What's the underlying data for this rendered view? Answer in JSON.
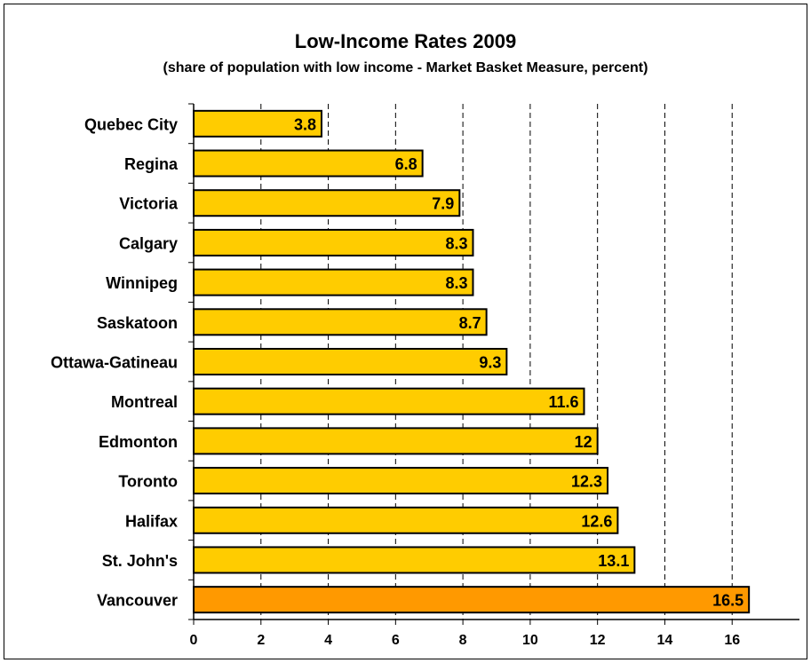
{
  "chart_data": {
    "type": "bar",
    "orientation": "horizontal",
    "title": "Low-Income Rates 2009",
    "subtitle": "(share of population with low income - Market Basket Measure, percent)",
    "xlabel": "",
    "ylabel": "",
    "categories": [
      "Quebec City",
      "Regina",
      "Victoria",
      "Calgary",
      "Winnipeg",
      "Saskatoon",
      "Ottawa-Gatineau",
      "Montreal",
      "Edmonton",
      "Toronto",
      "Halifax",
      "St. John's",
      "Vancouver"
    ],
    "values": [
      3.8,
      6.8,
      7.9,
      8.3,
      8.3,
      8.7,
      9.3,
      11.6,
      12,
      12.3,
      12.6,
      13.1,
      16.5
    ],
    "data_labels": [
      "3.8",
      "6.8",
      "7.9",
      "8.3",
      "8.3",
      "8.7",
      "9.3",
      "11.6",
      "12",
      "12.3",
      "12.6",
      "13.1",
      "16.5"
    ],
    "xlim": [
      0,
      18
    ],
    "xticks": [
      0,
      2,
      4,
      6,
      8,
      10,
      12,
      14,
      16
    ],
    "grid": "vertical dashed",
    "legend": "none",
    "colors": {
      "bar": "#FFCC00",
      "highlight_bar": "#FF9900",
      "highlight_category": "Vancouver",
      "bar_edge": "#000000",
      "grid": "#000000"
    }
  }
}
